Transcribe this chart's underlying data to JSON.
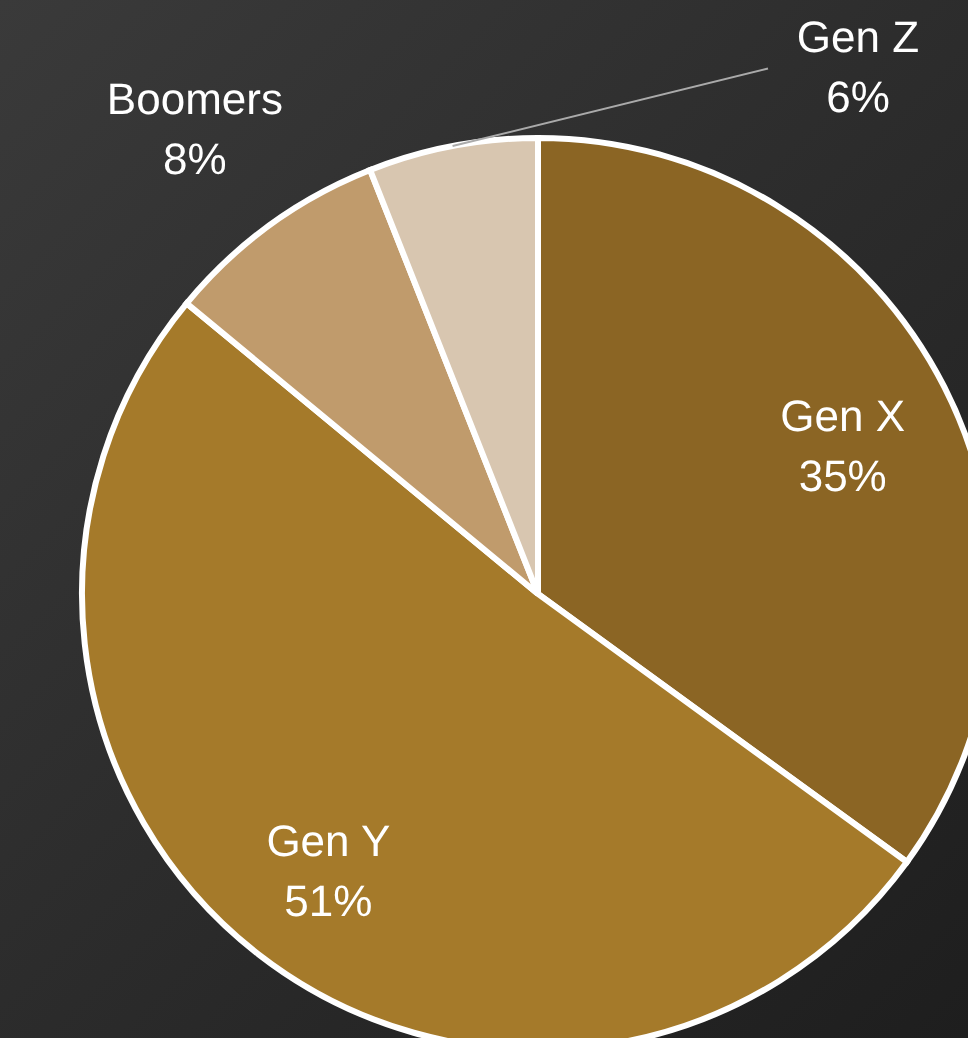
{
  "chart_data": {
    "type": "pie",
    "categories": [
      "Gen X",
      "Gen Y",
      "Boomers",
      "Gen Z"
    ],
    "values": [
      35,
      51,
      8,
      6
    ],
    "value_labels": [
      "35%",
      "51%",
      "8%",
      "6%"
    ],
    "colors": [
      "#8b6524",
      "#a57a2a",
      "#c09b6c",
      "#d8c6b0"
    ],
    "legend": false
  }
}
